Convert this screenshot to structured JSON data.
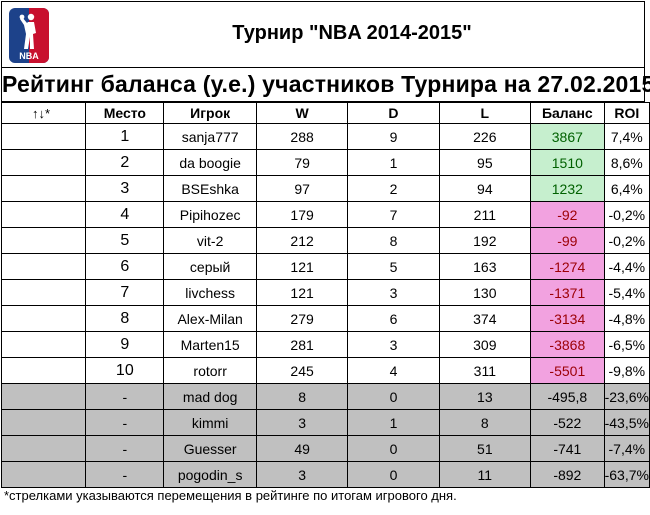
{
  "header": {
    "logo_text": "NBA",
    "tournament_title": "Турнир \"NBA 2014-2015\""
  },
  "rating_title": "Рейтинг баланса (у.е.) участников Турнира на 27.02.2015",
  "table": {
    "columns": [
      "↑↓*",
      "Место",
      "Игрок",
      "W",
      "D",
      "L",
      "Баланс",
      "ROI"
    ],
    "ranked_rows": [
      {
        "move": "",
        "place": "1",
        "player": "sanja777",
        "w": "288",
        "d": "9",
        "l": "226",
        "balance": "3867",
        "roi": "7,4%"
      },
      {
        "move": "",
        "place": "2",
        "player": "da boogie",
        "w": "79",
        "d": "1",
        "l": "95",
        "balance": "1510",
        "roi": "8,6%"
      },
      {
        "move": "",
        "place": "3",
        "player": "BSEshka",
        "w": "97",
        "d": "2",
        "l": "94",
        "balance": "1232",
        "roi": "6,4%"
      },
      {
        "move": "",
        "place": "4",
        "player": "Pipihozec",
        "w": "179",
        "d": "7",
        "l": "211",
        "balance": "-92",
        "roi": "-0,2%"
      },
      {
        "move": "",
        "place": "5",
        "player": "vit-2",
        "w": "212",
        "d": "8",
        "l": "192",
        "balance": "-99",
        "roi": "-0,2%"
      },
      {
        "move": "",
        "place": "6",
        "player": "серый",
        "w": "121",
        "d": "5",
        "l": "163",
        "balance": "-1274",
        "roi": "-4,4%"
      },
      {
        "move": "",
        "place": "7",
        "player": "livchess",
        "w": "121",
        "d": "3",
        "l": "130",
        "balance": "-1371",
        "roi": "-5,4%"
      },
      {
        "move": "",
        "place": "8",
        "player": "Alex-Milan",
        "w": "279",
        "d": "6",
        "l": "374",
        "balance": "-3134",
        "roi": "-4,8%"
      },
      {
        "move": "",
        "place": "9",
        "player": "Marten15",
        "w": "281",
        "d": "3",
        "l": "309",
        "balance": "-3868",
        "roi": "-6,5%"
      },
      {
        "move": "",
        "place": "10",
        "player": "rotorr",
        "w": "245",
        "d": "4",
        "l": "311",
        "balance": "-5501",
        "roi": "-9,8%"
      }
    ],
    "unranked_rows": [
      {
        "move": "",
        "place": "-",
        "player": "mad dog",
        "w": "8",
        "d": "0",
        "l": "13",
        "balance": "-495,8",
        "roi": "-23,6%"
      },
      {
        "move": "",
        "place": "-",
        "player": "kimmi",
        "w": "3",
        "d": "1",
        "l": "8",
        "balance": "-522",
        "roi": "-43,5%"
      },
      {
        "move": "",
        "place": "-",
        "player": "Guesser",
        "w": "49",
        "d": "0",
        "l": "51",
        "balance": "-741",
        "roi": "-7,4%"
      },
      {
        "move": "",
        "place": "-",
        "player": "pogodin_s",
        "w": "3",
        "d": "0",
        "l": "11",
        "balance": "-892",
        "roi": "-63,7%"
      }
    ]
  },
  "footnote": "*стрелками указываются перемещения в рейтинге по итогам игрового дня.",
  "colors": {
    "positive_fill": "#c6efce",
    "positive_text": "#006100",
    "negative_fill": "#f2a2e0",
    "negative_text": "#9c0006",
    "unranked_fill": "#c0c0c0",
    "logo_blue": "#1d428a",
    "logo_red": "#c8102e"
  }
}
